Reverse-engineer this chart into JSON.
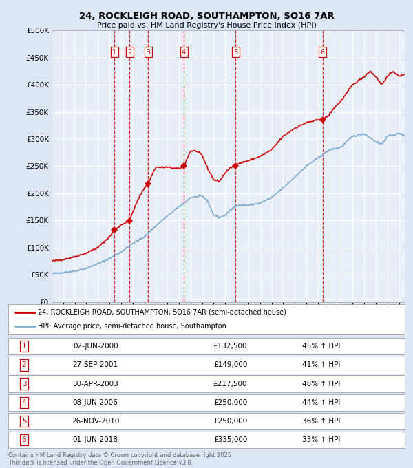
{
  "title": "24, ROCKLEIGH ROAD, SOUTHAMPTON, SO16 7AR",
  "subtitle": "Price paid vs. HM Land Registry's House Price Index (HPI)",
  "red_label": "24, ROCKLEIGH ROAD, SOUTHAMPTON, SO16 7AR (semi-detached house)",
  "blue_label": "HPI: Average price, semi-detached house, Southampton",
  "footer": "Contains HM Land Registry data © Crown copyright and database right 2025.\nThis data is licensed under the Open Government Licence v3.0.",
  "transactions": [
    {
      "num": 1,
      "date": "02-JUN-2000",
      "price": "£132,500",
      "hpi": "45% ↑ HPI",
      "year": 2000.42,
      "price_val": 132500
    },
    {
      "num": 2,
      "date": "27-SEP-2001",
      "price": "£149,000",
      "hpi": "41% ↑ HPI",
      "year": 2001.73,
      "price_val": 149000
    },
    {
      "num": 3,
      "date": "30-APR-2003",
      "price": "£217,500",
      "hpi": "48% ↑ HPI",
      "year": 2003.33,
      "price_val": 217500
    },
    {
      "num": 4,
      "date": "08-JUN-2006",
      "price": "£250,000",
      "hpi": "44% ↑ HPI",
      "year": 2006.42,
      "price_val": 250000
    },
    {
      "num": 5,
      "date": "26-NOV-2010",
      "price": "£250,000",
      "hpi": "36% ↑ HPI",
      "year": 2010.9,
      "price_val": 250000
    },
    {
      "num": 6,
      "date": "01-JUN-2018",
      "price": "£335,000",
      "hpi": "33% ↑ HPI",
      "year": 2018.42,
      "price_val": 335000
    }
  ],
  "ylim": [
    0,
    500000
  ],
  "xlim_left": 1995.0,
  "xlim_right": 2025.5,
  "background_color": "#dce6f5",
  "plot_bg": "#e8eef8",
  "red_color": "#cc0000",
  "blue_color": "#7aaad0",
  "vline_color": "#cc0000",
  "grid_color": "#ffffff",
  "hpi_anchor_years": [
    1995.0,
    1996.0,
    1997.0,
    1998.0,
    1999.0,
    2000.0,
    2001.0,
    2002.0,
    2003.0,
    2004.0,
    2005.0,
    2006.0,
    2007.0,
    2008.0,
    2008.5,
    2009.0,
    2009.5,
    2010.0,
    2010.5,
    2011.0,
    2012.0,
    2013.0,
    2014.0,
    2015.0,
    2016.0,
    2017.0,
    2018.0,
    2019.0,
    2020.0,
    2020.5,
    2021.0,
    2022.0,
    2023.0,
    2023.5,
    2024.0,
    2025.0,
    2025.5
  ],
  "hpi_anchor_vals": [
    52000,
    54000,
    57000,
    62000,
    70000,
    80000,
    92000,
    107000,
    120000,
    140000,
    158000,
    175000,
    192000,
    195000,
    185000,
    160000,
    155000,
    160000,
    170000,
    178000,
    178000,
    182000,
    192000,
    210000,
    230000,
    250000,
    265000,
    280000,
    285000,
    295000,
    305000,
    310000,
    295000,
    290000,
    305000,
    310000,
    307000
  ],
  "red_anchor_years": [
    1995.0,
    1996.0,
    1997.0,
    1998.0,
    1999.0,
    2000.0,
    2000.42,
    2000.8,
    2001.0,
    2001.73,
    2002.0,
    2002.5,
    2003.0,
    2003.33,
    2003.8,
    2004.0,
    2005.0,
    2006.0,
    2006.42,
    2007.0,
    2007.5,
    2008.0,
    2008.5,
    2009.0,
    2009.5,
    2010.0,
    2010.5,
    2010.9,
    2011.0,
    2012.0,
    2013.0,
    2014.0,
    2015.0,
    2016.0,
    2017.0,
    2018.0,
    2018.42,
    2019.0,
    2019.5,
    2020.0,
    2020.5,
    2021.0,
    2022.0,
    2022.5,
    2023.0,
    2023.5,
    2024.0,
    2024.5,
    2025.0,
    2025.5
  ],
  "red_anchor_vals": [
    75000,
    78000,
    83000,
    90000,
    100000,
    120000,
    132500,
    138000,
    142000,
    149000,
    165000,
    190000,
    210000,
    217500,
    240000,
    248000,
    248000,
    245000,
    250000,
    278000,
    278000,
    270000,
    245000,
    225000,
    222000,
    238000,
    248000,
    250000,
    254000,
    260000,
    268000,
    280000,
    305000,
    320000,
    330000,
    335000,
    335000,
    345000,
    360000,
    370000,
    385000,
    400000,
    415000,
    425000,
    415000,
    400000,
    415000,
    425000,
    415000,
    420000
  ]
}
